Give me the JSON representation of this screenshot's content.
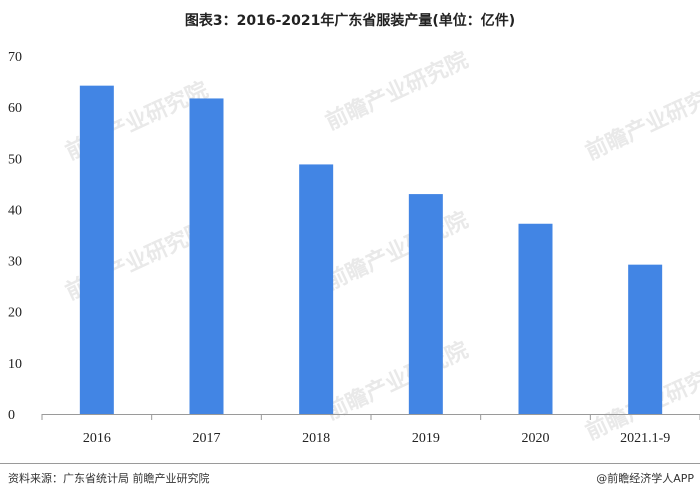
{
  "header": {
    "title": "图表3：2016-2021年广东省服装产量(单位：亿件)"
  },
  "footer": {
    "source": "资料来源：广东省统计局 前瞻产业研究院",
    "brand": "@前瞻经济学人APP"
  },
  "watermark": {
    "text": "前瞻产业研究院"
  },
  "colors": {
    "bar": "#4285e4",
    "axis": "#9a9a9a",
    "text": "#222222"
  },
  "chart_data": {
    "type": "bar",
    "title": "图表3：2016-2021年广东省服装产量(单位：亿件)",
    "xlabel": "",
    "ylabel": "",
    "categories": [
      "2016",
      "2017",
      "2018",
      "2019",
      "2020",
      "2021.1-9"
    ],
    "values": [
      64.2,
      61.7,
      48.8,
      43.0,
      37.2,
      29.2
    ],
    "yticks": [
      0,
      10,
      20,
      30,
      40,
      50,
      60,
      70
    ],
    "ylim": [
      0,
      70
    ],
    "grid": false,
    "legend": "none"
  }
}
